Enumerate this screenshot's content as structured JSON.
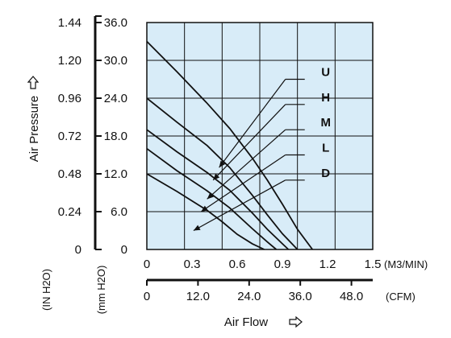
{
  "chart_data": {
    "type": "line",
    "xlabel": "Air Flow",
    "ylabel": "Air Pressure",
    "x_primary": {
      "unit": "(M3/MIN)",
      "range": [
        0,
        1.5
      ],
      "ticks": [
        "0",
        "0.3",
        "0.6",
        "0.9",
        "1.2",
        "1.5"
      ]
    },
    "x_secondary": {
      "unit": "(CFM)",
      "range": [
        0,
        53
      ],
      "ticks": [
        "0",
        "12.0",
        "24.0",
        "36.0",
        "48.0"
      ]
    },
    "y_primary": {
      "unit": "(mm H2O)",
      "range": [
        0,
        36
      ],
      "ticks": [
        "0",
        "6.0",
        "12.0",
        "18.0",
        "24.0",
        "30.0",
        "36.0"
      ]
    },
    "y_secondary": {
      "unit": "(IN H2O)",
      "range": [
        0,
        1.44
      ],
      "ticks": [
        "0",
        "0.24",
        "0.48",
        "0.72",
        "0.96",
        "1.20",
        "1.44"
      ]
    },
    "grid": true,
    "background_color": "#d8ecf8",
    "line_color": "#111111",
    "series": [
      {
        "name": "U",
        "x": [
          0,
          0.2,
          0.4,
          0.55,
          0.7,
          0.8,
          0.9,
          1.0,
          1.1
        ],
        "y": [
          33,
          28.2,
          23.2,
          19.2,
          14.5,
          11.0,
          7.2,
          3.2,
          0
        ]
      },
      {
        "name": "H",
        "x": [
          0,
          0.2,
          0.4,
          0.55,
          0.7,
          0.8,
          0.9,
          1.0
        ],
        "y": [
          24,
          20.2,
          16.5,
          13.0,
          8.6,
          5.5,
          2.5,
          0
        ]
      },
      {
        "name": "M",
        "x": [
          0,
          0.2,
          0.4,
          0.55,
          0.7,
          0.8,
          0.9,
          0.94
        ],
        "y": [
          19,
          15.5,
          12.2,
          9.4,
          5.8,
          3.2,
          0.9,
          0
        ]
      },
      {
        "name": "L",
        "x": [
          0,
          0.2,
          0.4,
          0.55,
          0.7,
          0.8,
          0.86
        ],
        "y": [
          16,
          12.5,
          9.3,
          6.6,
          3.3,
          1.2,
          0
        ]
      },
      {
        "name": "D",
        "x": [
          0,
          0.2,
          0.4,
          0.5,
          0.6,
          0.7,
          0.78
        ],
        "y": [
          12,
          9.2,
          6.2,
          4.4,
          2.4,
          0.9,
          0
        ]
      }
    ],
    "leaders": [
      {
        "series": "U",
        "label_pos": [
          1.07,
          27.0
        ],
        "tip": [
          0.48,
          13.0
        ]
      },
      {
        "series": "H",
        "label_pos": [
          1.07,
          23.0
        ],
        "tip": [
          0.44,
          11.0
        ]
      },
      {
        "series": "M",
        "label_pos": [
          1.07,
          19.0
        ],
        "tip": [
          0.4,
          8.0
        ]
      },
      {
        "series": "L",
        "label_pos": [
          1.07,
          15.0
        ],
        "tip": [
          0.36,
          6.0
        ]
      },
      {
        "series": "D",
        "label_pos": [
          1.07,
          11.0
        ],
        "tip": [
          0.31,
          3.0
        ]
      }
    ]
  }
}
